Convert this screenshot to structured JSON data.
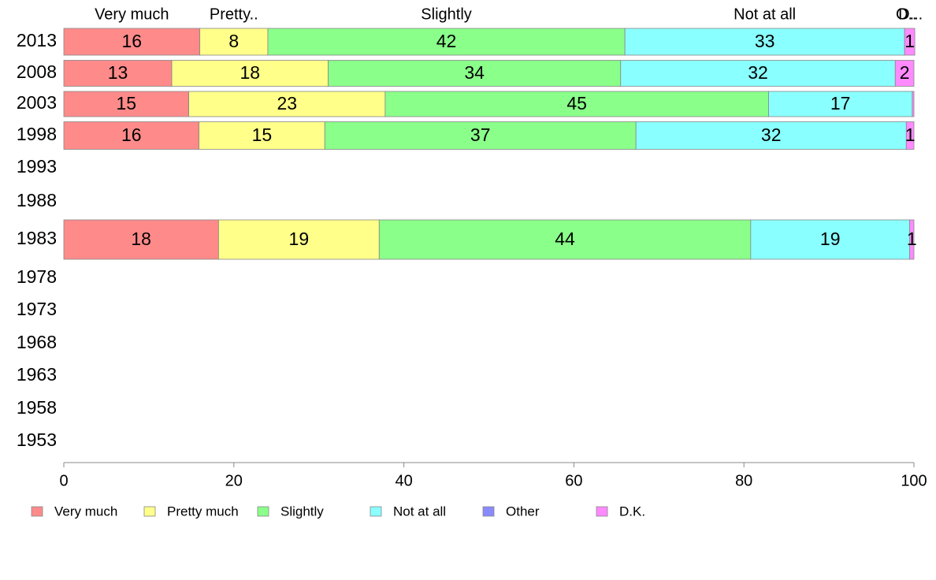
{
  "chart_data": {
    "type": "bar",
    "orientation": "horizontal",
    "stacked": true,
    "title": "",
    "xlabel": "",
    "ylabel": "",
    "xlim": [
      0,
      100
    ],
    "x_ticks": [
      "0",
      "20",
      "40",
      "60",
      "80",
      "100"
    ],
    "grid": false,
    "legend_position": "bottom",
    "categories": [
      "2013",
      "2008",
      "2003",
      "1998",
      "1993",
      "1988",
      "1983",
      "1978",
      "1973",
      "1968",
      "1963",
      "1958",
      "1953"
    ],
    "column_headers": [
      "Very much",
      "Pretty..",
      "Slightly",
      "Not at all",
      "O..",
      "D..."
    ],
    "series": [
      {
        "name": "Very much",
        "color": "#FF8A8A",
        "values": [
          16,
          12.7,
          14.7,
          15.9,
          null,
          null,
          18.2,
          null,
          null,
          null,
          null,
          null,
          null
        ],
        "labels": [
          "16",
          "13",
          "15",
          "16",
          "",
          "",
          "18",
          "",
          "",
          "",
          "",
          "",
          ""
        ]
      },
      {
        "name": "Pretty much",
        "color": "#FFFF8A",
        "values": [
          8,
          18.4,
          23.1,
          14.8,
          null,
          null,
          18.9,
          null,
          null,
          null,
          null,
          null,
          null
        ],
        "labels": [
          "8",
          "18",
          "23",
          "15",
          "",
          "",
          "19",
          "",
          "",
          "",
          "",
          "",
          ""
        ]
      },
      {
        "name": "Slightly",
        "color": "#8AFF8A",
        "values": [
          42,
          34.4,
          45.1,
          36.6,
          null,
          null,
          43.7,
          null,
          null,
          null,
          null,
          null,
          null
        ],
        "labels": [
          "42",
          "34",
          "45",
          "37",
          "",
          "",
          "44",
          "",
          "",
          "",
          "",
          "",
          ""
        ]
      },
      {
        "name": "Not at all",
        "color": "#8AFFFF",
        "values": [
          32.9,
          32.3,
          16.9,
          31.8,
          null,
          null,
          18.7,
          null,
          null,
          null,
          null,
          null,
          null
        ],
        "labels": [
          "33",
          "32",
          "17",
          "32",
          "",
          "",
          "19",
          "",
          "",
          "",
          "",
          "",
          ""
        ]
      },
      {
        "name": "Other",
        "color": "#8A8AFF",
        "values": [
          0,
          0,
          0,
          0,
          null,
          null,
          0,
          null,
          null,
          null,
          null,
          null,
          null
        ],
        "labels": [
          "",
          "",
          "",
          "",
          "",
          "",
          "",
          "",
          "",
          "",
          "",
          "",
          ""
        ]
      },
      {
        "name": "D.K.",
        "color": "#FF8AFF",
        "values": [
          1.2,
          2.2,
          0.2,
          0.9,
          null,
          null,
          0.5,
          null,
          null,
          null,
          null,
          null,
          null
        ],
        "labels": [
          "1",
          "2",
          "",
          "1",
          "",
          "",
          "1",
          "",
          "",
          "",
          "",
          "",
          ""
        ]
      }
    ],
    "legend": [
      "Very much",
      "Pretty much",
      "Slightly",
      "Not at all",
      "Other",
      "D.K."
    ]
  }
}
